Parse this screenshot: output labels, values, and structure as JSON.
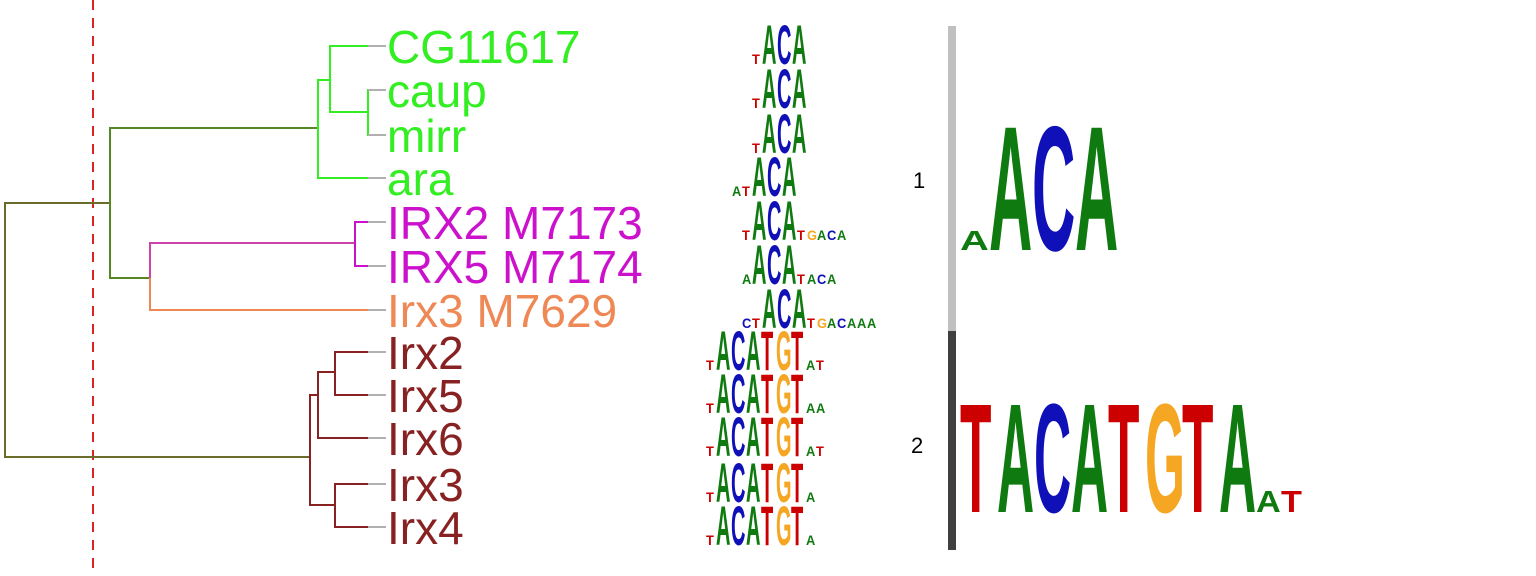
{
  "colors": {
    "A": "#0f7a0f",
    "C": "#1010b8",
    "G": "#f5a623",
    "T": "#cc0000",
    "cut_line": "#dd2222",
    "connector": "#b0b0b0",
    "cluster_bar_1": "#c0c0c0",
    "cluster_bar_2": "#404040"
  },
  "leaves": [
    {
      "label": "CG11617",
      "color": "#33ee22",
      "motif": [
        "t",
        "A",
        "C",
        "A"
      ]
    },
    {
      "label": "caup",
      "color": "#33ee22",
      "motif": [
        "t",
        "A",
        "C",
        "A"
      ]
    },
    {
      "label": "mirr",
      "color": "#33ee22",
      "motif": [
        "t",
        "A",
        "C",
        "A"
      ]
    },
    {
      "label": "ara",
      "color": "#33ee22",
      "motif": [
        "a",
        "t",
        "A",
        "C",
        "A"
      ]
    },
    {
      "label": "IRX2 M7173",
      "color": "#cc11cc",
      "motif": [
        "t",
        "A",
        "C",
        "A",
        "t",
        "g",
        "a",
        "c",
        "a"
      ]
    },
    {
      "label": "IRX5 M7174",
      "color": "#cc11cc",
      "motif": [
        "a",
        "A",
        "C",
        "A",
        "t",
        "a",
        "c",
        "a"
      ]
    },
    {
      "label": "Irx3 M7629",
      "color": "#ee8855",
      "motif": [
        "c",
        "t",
        "A",
        "C",
        "A",
        "t",
        "g",
        "a",
        "c",
        "a",
        "a",
        "a"
      ]
    },
    {
      "label": "Irx2",
      "color": "#882222",
      "motif": [
        "t",
        "A",
        "C",
        "A",
        "T",
        "G",
        "T",
        "a",
        "t"
      ]
    },
    {
      "label": "Irx5",
      "color": "#882222",
      "motif": [
        "t",
        "A",
        "C",
        "A",
        "T",
        "G",
        "T",
        "a",
        "a"
      ]
    },
    {
      "label": "Irx6",
      "color": "#882222",
      "motif": [
        "t",
        "A",
        "C",
        "A",
        "T",
        "G",
        "T",
        "a",
        "t"
      ]
    },
    {
      "label": "Irx3",
      "color": "#882222",
      "motif": [
        "t",
        "A",
        "C",
        "A",
        "T",
        "G",
        "T",
        "a"
      ]
    },
    {
      "label": "Irx4",
      "color": "#882222",
      "motif": [
        "t",
        "A",
        "C",
        "A",
        "T",
        "G",
        "T",
        "a"
      ]
    }
  ],
  "clusters": [
    {
      "number": "1",
      "consensus": [
        "a",
        "A",
        "C",
        "A"
      ]
    },
    {
      "number": "2",
      "consensus": [
        "T",
        "A",
        "C",
        "A",
        "T",
        "G",
        "T",
        "A",
        "a",
        "t"
      ]
    }
  ]
}
